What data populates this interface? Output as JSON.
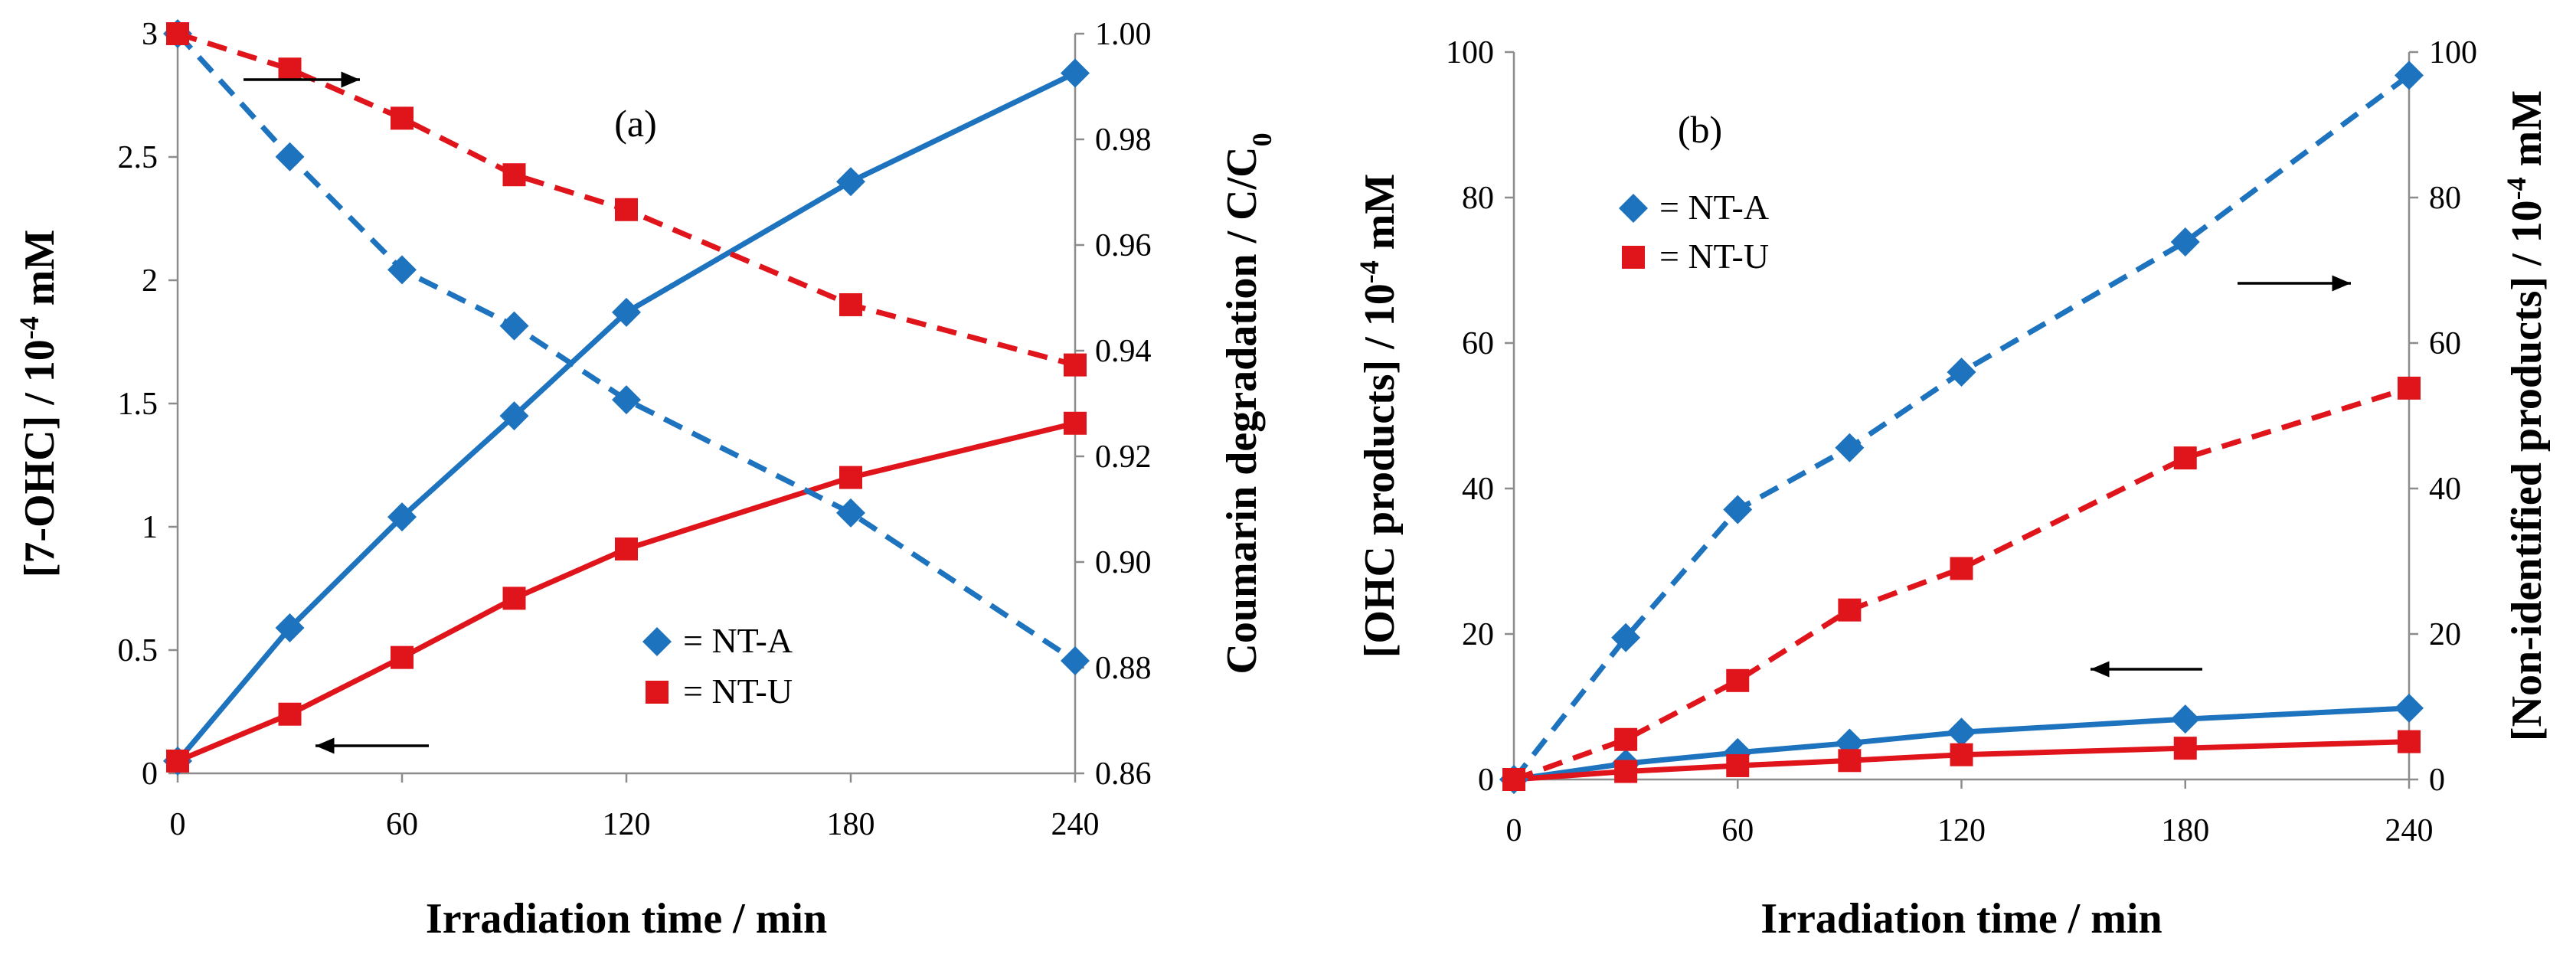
{
  "chart_data": [
    {
      "panel_label": "(a)",
      "type": "line",
      "x": [
        0,
        30,
        60,
        90,
        120,
        180,
        240
      ],
      "xlabel": "Irradiation time / min",
      "xlim": [
        0,
        240
      ],
      "xticks": [
        "0",
        "60",
        "120",
        "180",
        "240"
      ],
      "ylabel_left": "[7-OHC] / 10",
      "ylabel_left_sup": "-4",
      "ylabel_left_tail": " mM",
      "ylim_left": [
        0,
        3
      ],
      "yticks_left": [
        "0",
        "0.5",
        "1",
        "1.5",
        "2",
        "2.5",
        "3"
      ],
      "ylabel_right": "Coumarin degradation / C/C",
      "ylabel_right_sub": "0",
      "ylim_right": [
        0.86,
        1.0
      ],
      "yticks_right": [
        "0.86",
        "0.88",
        "0.90",
        "0.92",
        "0.94",
        "0.96",
        "0.98",
        "1.00"
      ],
      "legend": {
        "position": "bottom-center",
        "entries": [
          "= NT-A",
          "= NT-U"
        ]
      },
      "series": [
        {
          "name": "NT-A",
          "color": "#1e73be",
          "marker": "diamond",
          "line": "solid",
          "axis": "left",
          "values": [
            0.05,
            0.59,
            1.04,
            1.45,
            1.87,
            2.4,
            2.84
          ]
        },
        {
          "name": "NT-U",
          "color": "#e0151b",
          "marker": "square",
          "line": "solid",
          "axis": "left",
          "values": [
            0.05,
            0.24,
            0.47,
            0.71,
            0.91,
            1.2,
            1.42
          ]
        },
        {
          "name": "NT-A",
          "color": "#1e73be",
          "marker": "diamond",
          "line": "dashed",
          "axis": "right",
          "values": [
            1.0,
            0.9767,
            0.9553,
            0.9447,
            0.9307,
            0.9093,
            0.8813
          ]
        },
        {
          "name": "NT-U",
          "color": "#e0151b",
          "marker": "square",
          "line": "dashed",
          "axis": "right",
          "values": [
            1.0,
            0.9933,
            0.984,
            0.9733,
            0.9667,
            0.9487,
            0.9373
          ]
        }
      ],
      "arrows": [
        {
          "direction": "right",
          "points_to": "right-axis",
          "at": "top-left"
        },
        {
          "direction": "left",
          "points_to": "left-axis",
          "at": "bottom-left"
        }
      ]
    },
    {
      "panel_label": "(b)",
      "type": "line",
      "x": [
        0,
        30,
        60,
        90,
        120,
        180,
        240
      ],
      "xlabel": "Irradiation time / min",
      "xlim": [
        0,
        240
      ],
      "xticks": [
        "0",
        "60",
        "120",
        "180",
        "240"
      ],
      "ylabel_left": "[OHC products] / 10",
      "ylabel_left_sup": "-4",
      "ylabel_left_tail": " mM",
      "ylim_left": [
        0,
        100
      ],
      "yticks_left": [
        "0",
        "20",
        "40",
        "60",
        "80",
        "100"
      ],
      "ylabel_right": "[Non-identified products] / 10",
      "ylabel_right_sup": "-4",
      "ylabel_right_tail": " mM",
      "ylim_right": [
        0,
        100
      ],
      "yticks_right": [
        "0",
        "20",
        "40",
        "60",
        "80",
        "100"
      ],
      "legend": {
        "position": "top-left",
        "entries": [
          "= NT-A",
          "= NT-U"
        ]
      },
      "series": [
        {
          "name": "NT-A",
          "color": "#1e73be",
          "marker": "diamond",
          "line": "solid",
          "axis": "left",
          "values": [
            0,
            2.2,
            3.7,
            5.0,
            6.5,
            8.3,
            9.8
          ]
        },
        {
          "name": "NT-U",
          "color": "#e0151b",
          "marker": "square",
          "line": "solid",
          "axis": "left",
          "values": [
            0,
            1.1,
            1.9,
            2.6,
            3.4,
            4.3,
            5.2
          ]
        },
        {
          "name": "NT-A",
          "color": "#1e73be",
          "marker": "diamond",
          "line": "dashed",
          "axis": "right",
          "values": [
            0,
            19.5,
            37.1,
            45.6,
            56.0,
            73.9,
            96.8
          ]
        },
        {
          "name": "NT-U",
          "color": "#e0151b",
          "marker": "square",
          "line": "dashed",
          "axis": "right",
          "values": [
            0,
            5.5,
            13.6,
            23.3,
            29.0,
            44.2,
            53.8
          ]
        }
      ],
      "arrows": [
        {
          "direction": "right",
          "points_to": "right-axis",
          "at": "top-right"
        },
        {
          "direction": "left",
          "points_to": "left-axis",
          "at": "bottom-right"
        }
      ]
    }
  ]
}
